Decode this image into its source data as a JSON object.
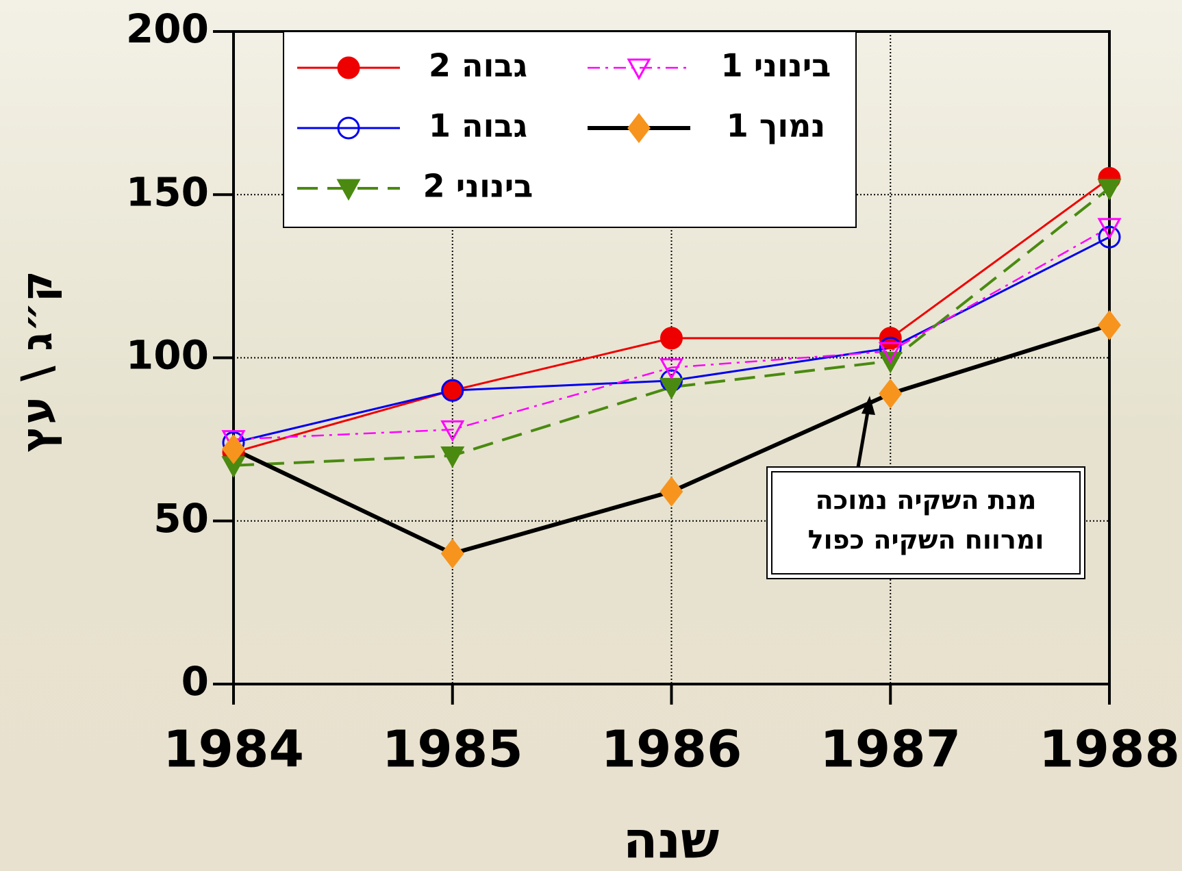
{
  "chart_data": {
    "type": "line",
    "x_label": "שנה",
    "y_label": "ק״ג \\ עץ",
    "x": [
      1984,
      1985,
      1986,
      1987,
      1988
    ],
    "xlim": [
      1984,
      1988
    ],
    "xticks": [
      1984,
      1985,
      1986,
      1987,
      1988
    ],
    "ylim": [
      0,
      200
    ],
    "yticks": [
      0,
      50,
      100,
      150,
      200
    ],
    "grid": true,
    "series": [
      {
        "name": "גבוה 2",
        "color": "#ee0000",
        "marker": "circle",
        "marker_fill": "#ee0000",
        "dash": "solid",
        "values": [
          71,
          90,
          106,
          106,
          155
        ]
      },
      {
        "name": "גבוה 1",
        "color": "#0000ee",
        "marker": "circle",
        "marker_fill": "none",
        "dash": "solid",
        "values": [
          74,
          90,
          93,
          103,
          137
        ]
      },
      {
        "name": "בינוני 2",
        "color": "#4a8a10",
        "marker": "triangle-down",
        "marker_fill": "#4a8a10",
        "dash": "dashed",
        "values": [
          67,
          70,
          91,
          99,
          152
        ]
      },
      {
        "name": "בינוני 1",
        "color": "#ff00ff",
        "marker": "triangle-down",
        "marker_fill": "none",
        "dash": "dashdot",
        "values": [
          75,
          78,
          97,
          102,
          140
        ]
      },
      {
        "name": "נמוך 1",
        "color": "#000000",
        "marker": "diamond",
        "marker_fill": "#f7941d",
        "dash": "thick",
        "values": [
          72,
          40,
          59,
          89,
          110
        ]
      }
    ],
    "annotation": [
      "מנת השקיה נמוכה",
      "ומרווח השקיה כפול"
    ]
  }
}
